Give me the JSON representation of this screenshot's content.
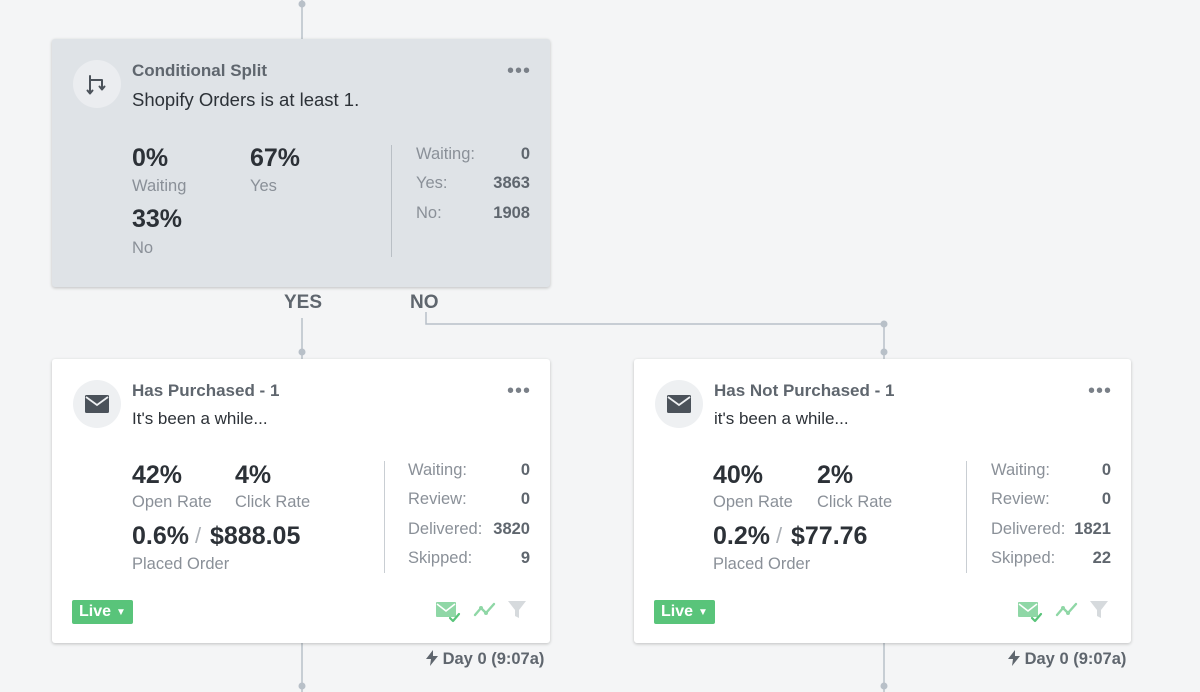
{
  "split": {
    "title": "Conditional Split",
    "condition": "Shopify Orders is at least 1.",
    "waiting_pct": "0%",
    "waiting_label": "Waiting",
    "yes_pct": "67%",
    "yes_label": "Yes",
    "no_pct": "33%",
    "no_label": "No",
    "stats": [
      {
        "label": "Waiting:",
        "value": "0"
      },
      {
        "label": "Yes:",
        "value": "3863"
      },
      {
        "label": "No:",
        "value": "1908"
      }
    ]
  },
  "branches": {
    "yes": "YES",
    "no": "NO"
  },
  "cards": [
    {
      "title": "Has Purchased - 1",
      "subject": "It's been a while...",
      "open_rate": "42%",
      "open_label": "Open Rate",
      "click_rate": "4%",
      "click_label": "Click Rate",
      "placed_pct": "0.6%",
      "slash": "/",
      "revenue": "$888.05",
      "placed_label": "Placed Order",
      "stats": [
        {
          "label": "Waiting:",
          "value": "0"
        },
        {
          "label": "Review:",
          "value": "0"
        },
        {
          "label": "Delivered:",
          "value": "3820"
        },
        {
          "label": "Skipped:",
          "value": "9"
        }
      ],
      "status": "Live",
      "delay": "Day 0 (9:07a)"
    },
    {
      "title": "Has Not Purchased - 1",
      "subject": "it's been a while...",
      "open_rate": "40%",
      "open_label": "Open Rate",
      "click_rate": "2%",
      "click_label": "Click Rate",
      "placed_pct": "0.2%",
      "slash": "/",
      "revenue": "$77.76",
      "placed_label": "Placed Order",
      "stats": [
        {
          "label": "Waiting:",
          "value": "0"
        },
        {
          "label": "Review:",
          "value": "0"
        },
        {
          "label": "Delivered:",
          "value": "1821"
        },
        {
          "label": "Skipped:",
          "value": "22"
        }
      ],
      "status": "Live",
      "delay": "Day 0 (9:07a)"
    }
  ],
  "more_glyph": "•••",
  "icons": {
    "split": "split-arrows-icon",
    "email": "envelope-icon",
    "smart_send": "mail-check-icon",
    "analytics": "trend-icon",
    "filter": "funnel-icon",
    "delay": "lightning-icon",
    "caret": "caret-down-icon"
  },
  "colors": {
    "background": "#f4f5f6",
    "split_card": "#dfe3e7",
    "live_green": "#59c47a",
    "connector": "#b8c0c8"
  }
}
